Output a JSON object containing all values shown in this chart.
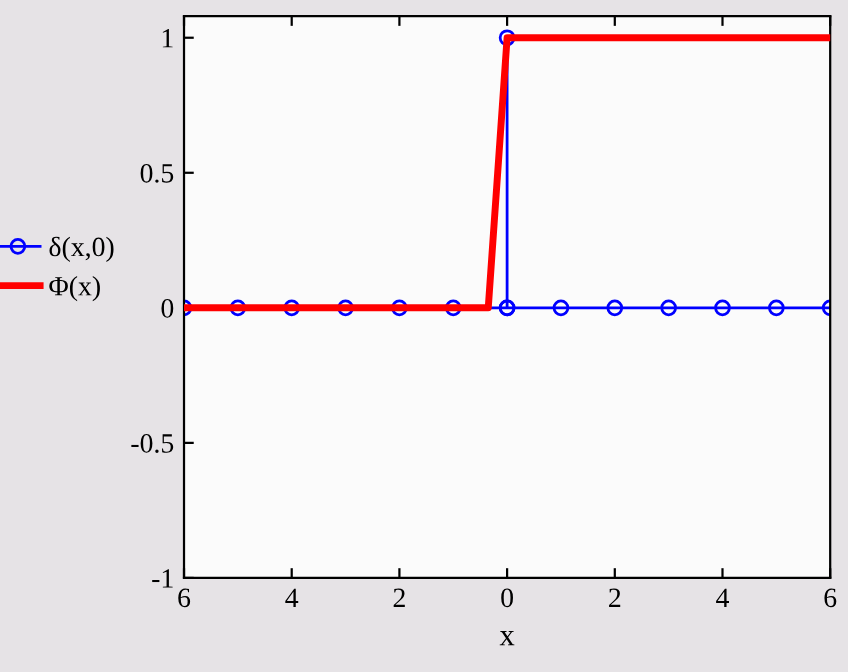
{
  "chart_data": {
    "type": "line",
    "xlabel": "x",
    "series": [
      {
        "name": "δ(x,0)",
        "color": "#0000ff",
        "marker": "circle",
        "x": [
          -6,
          -5,
          -4,
          -3,
          -2,
          -1,
          0,
          0,
          0,
          1,
          2,
          3,
          4,
          5,
          6
        ],
        "values": [
          0,
          0,
          0,
          0,
          0,
          0,
          0,
          1,
          0,
          0,
          0,
          0,
          0,
          0,
          0
        ]
      },
      {
        "name": "Φ(x)",
        "color": "#ff0000",
        "marker": "none",
        "x": [
          -6,
          -0.35,
          0,
          6
        ],
        "values": [
          0,
          0,
          1,
          1
        ]
      }
    ],
    "xlim": [
      -6,
      6
    ],
    "xticks": [
      {
        "value": -6,
        "label": "6"
      },
      {
        "value": -4,
        "label": "4"
      },
      {
        "value": -2,
        "label": "2"
      },
      0,
      2,
      4,
      6
    ],
    "ylim": [
      -1,
      1.08
    ],
    "yticks": [
      -1,
      -0.5,
      0,
      0.5,
      1
    ],
    "grid": false,
    "legend": "left"
  }
}
